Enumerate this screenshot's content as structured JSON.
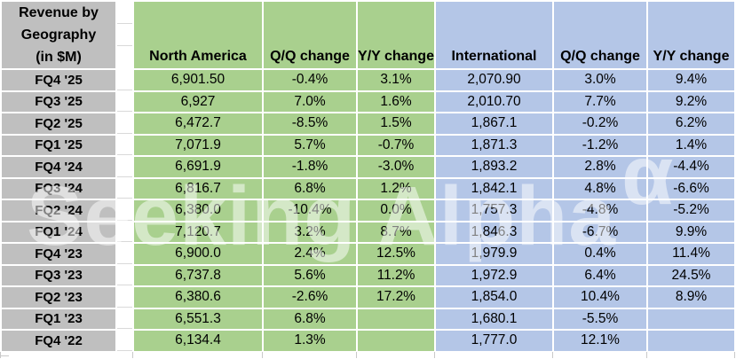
{
  "chart_data": {
    "type": "table",
    "title": "Revenue by Geography (in $M)",
    "title_lines": [
      "Revenue by",
      "Geography",
      "(in $M)"
    ],
    "columns": [
      "North America",
      "Q/Q change",
      "Y/Y change",
      "International",
      "Q/Q change",
      "Y/Y change"
    ],
    "rows": [
      {
        "label": "FQ4 '25",
        "values": [
          "6,901.50",
          "-0.4%",
          "3.1%",
          "2,070.90",
          "3.0%",
          "9.4%"
        ]
      },
      {
        "label": "FQ3 '25",
        "values": [
          "6,927",
          "7.0%",
          "1.6%",
          "2,010.70",
          "7.7%",
          "9.2%"
        ]
      },
      {
        "label": "FQ2 '25",
        "values": [
          "6,472.7",
          "-8.5%",
          "1.5%",
          "1,867.1",
          "-0.2%",
          "6.2%"
        ]
      },
      {
        "label": "FQ1 '25",
        "values": [
          "7,071.9",
          "5.7%",
          "-0.7%",
          "1,871.3",
          "-1.2%",
          "1.4%"
        ]
      },
      {
        "label": "FQ4 '24",
        "values": [
          "6,691.9",
          "-1.8%",
          "-3.0%",
          "1,893.2",
          "2.8%",
          "-4.4%"
        ]
      },
      {
        "label": "FQ3 '24",
        "values": [
          "6,816.7",
          "6.8%",
          "1.2%",
          "1,842.1",
          "4.8%",
          "-6.6%"
        ]
      },
      {
        "label": "FQ2 '24",
        "values": [
          "6,380.0",
          "-10.4%",
          "0.0%",
          "1,757.3",
          "-4.8%",
          "-5.2%"
        ]
      },
      {
        "label": "FQ1 '24",
        "values": [
          "7,120.7",
          "3.2%",
          "8.7%",
          "1,846.3",
          "-6.7%",
          "9.9%"
        ]
      },
      {
        "label": "FQ4 '23",
        "values": [
          "6,900.0",
          "2.4%",
          "12.5%",
          "1,979.9",
          "0.4%",
          "11.4%"
        ]
      },
      {
        "label": "FQ3 '23",
        "values": [
          "6,737.8",
          "5.6%",
          "11.2%",
          "1,972.9",
          "6.4%",
          "24.5%"
        ]
      },
      {
        "label": "FQ2 '23",
        "values": [
          "6,380.6",
          "-2.6%",
          "17.2%",
          "1,854.0",
          "10.4%",
          "8.9%"
        ]
      },
      {
        "label": "FQ1 '23",
        "values": [
          "6,551.3",
          "6.8%",
          "",
          "1,680.1",
          "-5.5%",
          ""
        ]
      },
      {
        "label": "FQ4 '22",
        "values": [
          "6,134.4",
          "1.3%",
          "",
          "1,777.0",
          "12.1%",
          ""
        ]
      }
    ]
  },
  "watermark": {
    "text": "Seeking Alpha",
    "symbol": "α"
  },
  "colors": {
    "label_bg": "#bfbfbf",
    "na_bg": "#a9d08e",
    "intl_bg": "#b4c6e7",
    "gridline": "#d9d9d9"
  }
}
